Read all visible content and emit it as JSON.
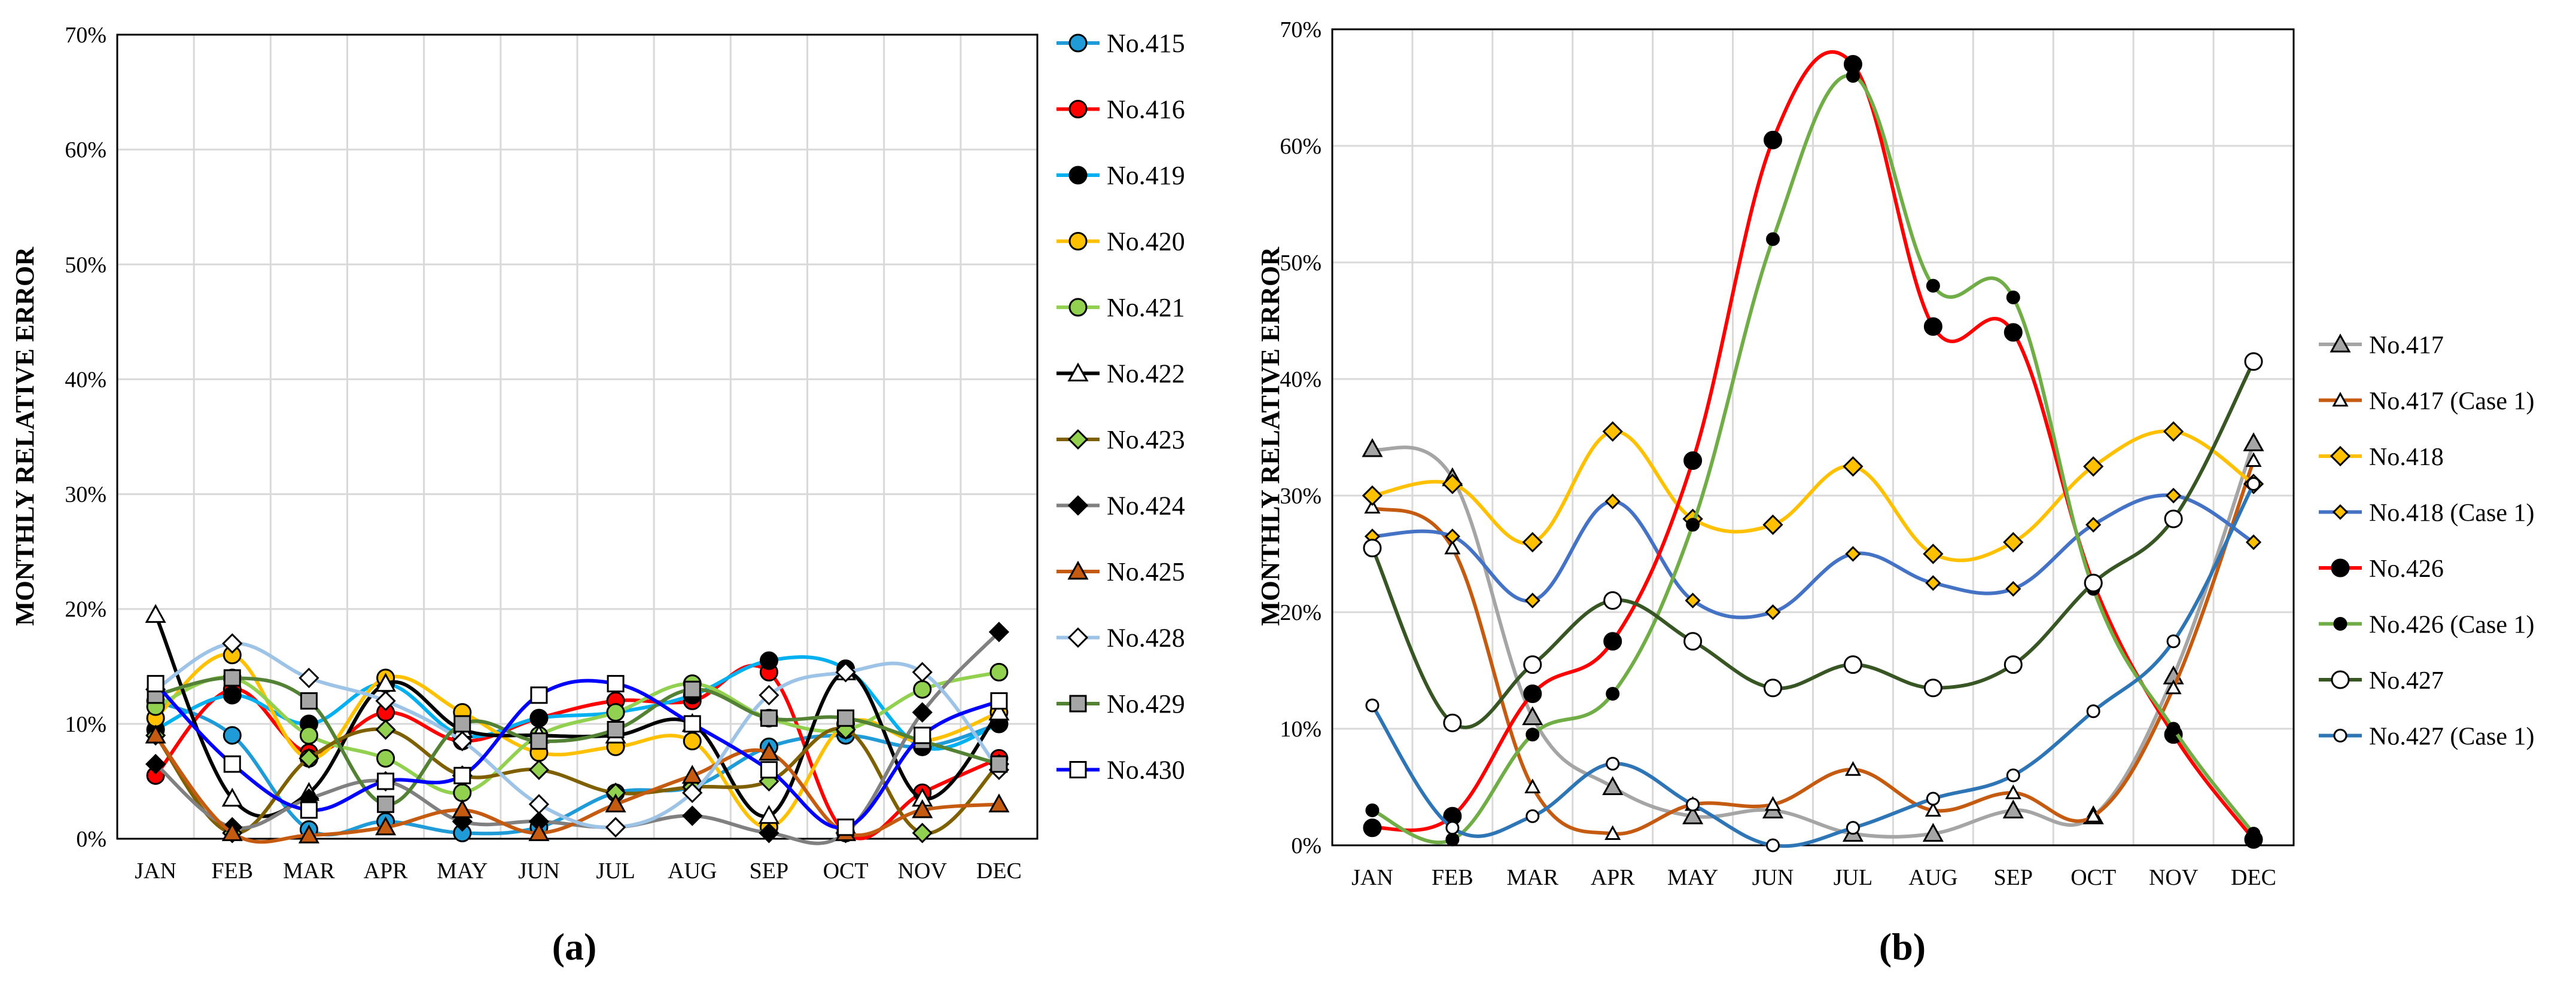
{
  "colors": {
    "No.415": "#1F9BD7",
    "No.416": "#FF0000",
    "No.419": "#00B0F0",
    "No.420": "#FFC000",
    "No.421": "#92D050",
    "No.422": "#000000",
    "No.423": "#7F6000",
    "No.424": "#808080",
    "No.425": "#C55A11",
    "No.428": "#9DC3E6",
    "No.429": "#548235",
    "No.430": "#0000FF",
    "No.417": "#A5A5A5",
    "No.417 (Case 1)": "#C55A11",
    "No.418": "#FFC000",
    "No.418 (Case 1)": "#4472C4",
    "No.426": "#FF0000",
    "No.426 (Case 1)": "#70AD47",
    "No.427": "#375623",
    "No.427 (Case 1)": "#2E75B6"
  },
  "panel_labels": [
    "(a)",
    "(b)"
  ],
  "chart_data": [
    {
      "type": "line",
      "panel": "(a)",
      "title": "",
      "xlabel": "",
      "ylabel": "MONTHLY RELATIVE ERROR",
      "ylim": [
        0,
        70
      ],
      "yticks": [
        "0%",
        "10%",
        "20%",
        "30%",
        "40%",
        "50%",
        "60%",
        "70%"
      ],
      "grid": true,
      "legend_position": "right",
      "categories": [
        "JAN",
        "FEB",
        "MAR",
        "APR",
        "MAY",
        "JUN",
        "JUL",
        "AUG",
        "SEP",
        "OCT",
        "NOV",
        "DEC"
      ],
      "series": [
        {
          "name": "No.415",
          "marker": "circle",
          "fill": "#1F9BD7",
          "values": [
            12.0,
            9.0,
            0.8,
            1.5,
            0.5,
            1.0,
            4.0,
            4.5,
            8.0,
            9.0,
            8.0,
            10.0
          ]
        },
        {
          "name": "No.416",
          "marker": "circle",
          "fill": "#FF0000",
          "values": [
            5.5,
            13.0,
            7.5,
            11.0,
            8.5,
            10.5,
            12.0,
            12.0,
            14.5,
            0.5,
            4.0,
            7.0
          ]
        },
        {
          "name": "No.419",
          "marker": "circle",
          "fill": "#000000",
          "values": [
            9.5,
            12.5,
            10.0,
            13.5,
            9.0,
            10.5,
            11.0,
            12.5,
            15.5,
            14.8,
            8.0,
            10.0
          ]
        },
        {
          "name": "No.420",
          "marker": "circle",
          "fill": "#FFC000",
          "values": [
            10.5,
            16.0,
            7.0,
            14.0,
            11.0,
            7.5,
            8.0,
            8.5,
            1.0,
            10.0,
            8.5,
            11.0
          ]
        },
        {
          "name": "No.421",
          "marker": "circle",
          "fill": "#92D050",
          "values": [
            11.5,
            14.0,
            9.0,
            7.0,
            4.0,
            9.0,
            11.0,
            13.5,
            10.5,
            9.5,
            13.0,
            14.5
          ]
        },
        {
          "name": "No.422",
          "marker": "triangle",
          "fill": "#FFFFFF",
          "values": [
            19.5,
            3.5,
            4.0,
            13.5,
            9.5,
            9.0,
            9.0,
            10.0,
            2.0,
            14.5,
            3.5,
            11.0
          ]
        },
        {
          "name": "No.423",
          "marker": "diamond",
          "fill": "#92D050",
          "values": [
            9.0,
            0.5,
            7.0,
            9.5,
            5.5,
            6.0,
            4.0,
            4.5,
            5.0,
            9.5,
            0.5,
            6.5
          ]
        },
        {
          "name": "No.424",
          "marker": "diamond",
          "fill": "#000000",
          "values": [
            6.5,
            1.0,
            3.5,
            5.0,
            1.5,
            1.5,
            1.0,
            2.0,
            0.5,
            0.5,
            11.0,
            18.0
          ]
        },
        {
          "name": "No.425",
          "marker": "triangle",
          "fill": "#C55A11",
          "values": [
            9.0,
            0.5,
            0.3,
            1.0,
            2.5,
            0.5,
            3.0,
            5.5,
            7.5,
            0.5,
            2.5,
            3.0
          ]
        },
        {
          "name": "No.428",
          "marker": "diamond",
          "fill": "#FFFFFF",
          "values": [
            13.0,
            17.0,
            14.0,
            12.0,
            8.5,
            3.0,
            1.0,
            4.0,
            12.5,
            14.5,
            14.5,
            6.0
          ]
        },
        {
          "name": "No.429",
          "marker": "square",
          "fill": "#A5A5A5",
          "values": [
            12.5,
            14.0,
            12.0,
            3.0,
            10.0,
            8.5,
            9.5,
            13.0,
            10.5,
            10.5,
            8.5,
            6.5
          ]
        },
        {
          "name": "No.430",
          "marker": "square",
          "fill": "#FFFFFF",
          "values": [
            13.5,
            6.5,
            2.5,
            5.0,
            5.5,
            12.5,
            13.5,
            10.0,
            6.0,
            1.0,
            9.0,
            12.0
          ]
        }
      ]
    },
    {
      "type": "line",
      "panel": "(b)",
      "title": "",
      "xlabel": "",
      "ylabel": "MONTHLY RELATIVE ERROR",
      "ylim": [
        0,
        70
      ],
      "yticks": [
        "0%",
        "10%",
        "20%",
        "30%",
        "40%",
        "50%",
        "60%",
        "70%"
      ],
      "grid": true,
      "legend_position": "right",
      "categories": [
        "JAN",
        "FEB",
        "MAR",
        "APR",
        "MAY",
        "JUN",
        "JUL",
        "AUG",
        "SEP",
        "OCT",
        "NOV",
        "DEC"
      ],
      "series": [
        {
          "name": "No.417",
          "marker": "triangle",
          "fill": "#A5A5A5",
          "values": [
            34.0,
            31.5,
            11.0,
            5.0,
            2.5,
            3.0,
            1.0,
            1.0,
            3.0,
            2.5,
            14.5,
            34.5
          ]
        },
        {
          "name": "No.417 (Case 1)",
          "marker": "triangle-small",
          "fill": "#FFFFFF",
          "values": [
            29.0,
            25.5,
            5.0,
            1.0,
            3.5,
            3.5,
            6.5,
            3.0,
            4.5,
            2.5,
            13.5,
            33.0
          ]
        },
        {
          "name": "No.418",
          "marker": "diamond",
          "fill": "#FFC000",
          "values": [
            30.0,
            31.0,
            26.0,
            35.5,
            28.0,
            27.5,
            32.5,
            25.0,
            26.0,
            32.5,
            35.5,
            31.0
          ]
        },
        {
          "name": "No.418 (Case 1)",
          "marker": "diamond-small",
          "fill": "#FFC000",
          "values": [
            26.5,
            26.5,
            21.0,
            29.5,
            21.0,
            20.0,
            25.0,
            22.5,
            22.0,
            27.5,
            30.0,
            26.0
          ]
        },
        {
          "name": "No.426",
          "marker": "circle",
          "fill": "#000000",
          "values": [
            1.5,
            2.5,
            13.0,
            17.5,
            33.0,
            60.5,
            67.0,
            44.5,
            44.0,
            22.5,
            9.5,
            0.5
          ]
        },
        {
          "name": "No.426 (Case 1)",
          "marker": "circle-small",
          "fill": "#000000",
          "values": [
            3.0,
            0.5,
            9.5,
            13.0,
            27.5,
            52.0,
            66.0,
            48.0,
            47.0,
            22.0,
            10.0,
            1.0
          ]
        },
        {
          "name": "No.427",
          "marker": "circle",
          "fill": "#FFFFFF",
          "values": [
            25.5,
            10.5,
            15.5,
            21.0,
            17.5,
            13.5,
            15.5,
            13.5,
            15.5,
            22.5,
            28.0,
            41.5
          ]
        },
        {
          "name": "No.427 (Case 1)",
          "marker": "circle-small",
          "fill": "#FFFFFF",
          "values": [
            12.0,
            1.5,
            2.5,
            7.0,
            3.5,
            0.0,
            1.5,
            4.0,
            6.0,
            11.5,
            17.5,
            31.0
          ]
        }
      ]
    }
  ]
}
